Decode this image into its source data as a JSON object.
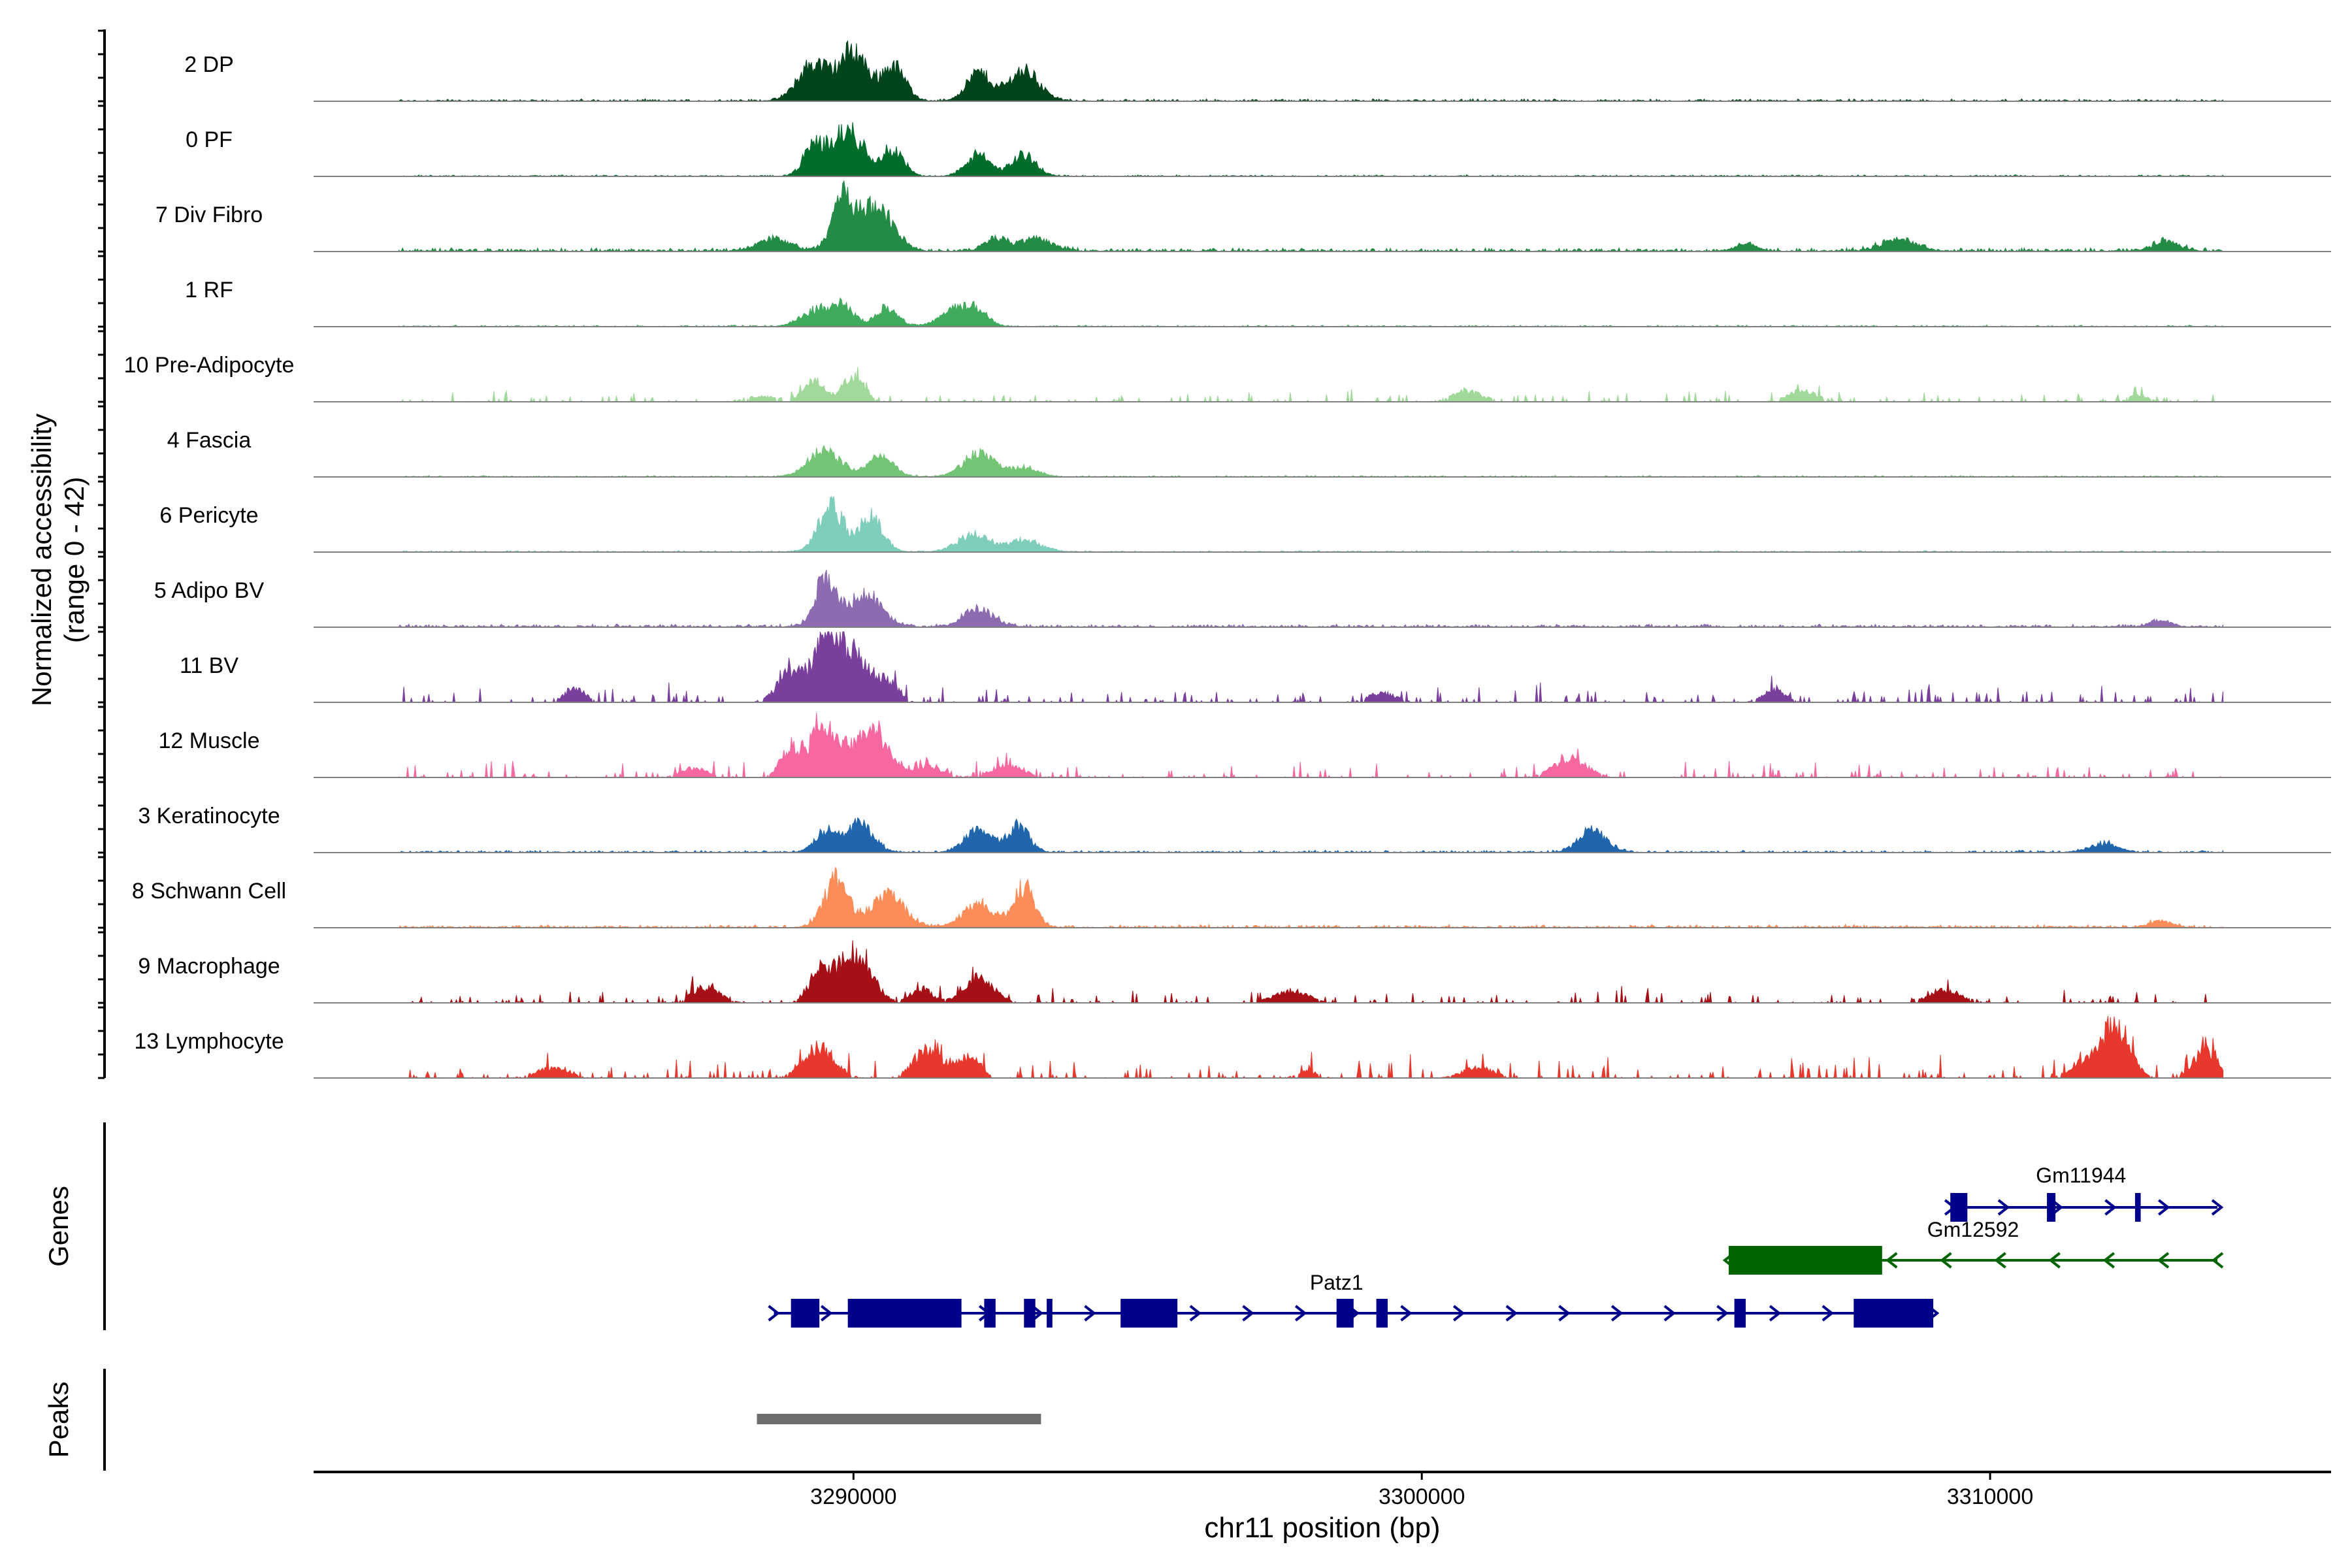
{
  "chart_data": {
    "type": "area",
    "title": "",
    "xlabel": "chr11 position (bp)",
    "ylabel_line1": "Normalized accessibility",
    "ylabel_line2": "(range 0 - 42)",
    "y_range": [
      0,
      42
    ],
    "x_range": [
      3280500,
      3316000
    ],
    "x_ticks": [
      3290000,
      3300000,
      3310000
    ],
    "x_tick_labels": [
      "3290000",
      "3300000",
      "3310000"
    ],
    "track_labels": {
      "genes": "Genes",
      "peaks": "Peaks"
    },
    "tracks": [
      {
        "name": "2 DP",
        "color": "#00441b",
        "peaks": [
          [
            3290000,
            37
          ],
          [
            3289300,
            28
          ],
          [
            3290700,
            26
          ],
          [
            3292200,
            21
          ],
          [
            3293000,
            23
          ]
        ],
        "noise": 1.5,
        "sparse": false,
        "extra": []
      },
      {
        "name": "0 PF",
        "color": "#006d2c",
        "peaks": [
          [
            3289900,
            34
          ],
          [
            3289300,
            20
          ],
          [
            3290700,
            20
          ],
          [
            3292200,
            16
          ],
          [
            3293000,
            16
          ]
        ],
        "noise": 1.0,
        "sparse": false,
        "extra": []
      },
      {
        "name": "7 Div Fibro",
        "color": "#238b45",
        "peaks": [
          [
            3289800,
            40
          ],
          [
            3290400,
            34
          ],
          [
            3288600,
            9
          ],
          [
            3292500,
            10
          ],
          [
            3293200,
            9
          ]
        ],
        "noise": 2.5,
        "sparse": false,
        "extra": [
          [
            3305700,
            5
          ],
          [
            3308400,
            9
          ],
          [
            3313100,
            7
          ]
        ]
      },
      {
        "name": "1 RF",
        "color": "#41ab5d",
        "peaks": [
          [
            3289800,
            16
          ],
          [
            3289300,
            12
          ],
          [
            3290600,
            15
          ],
          [
            3291800,
            13
          ],
          [
            3292200,
            10
          ]
        ],
        "noise": 1.0,
        "sparse": false,
        "extra": []
      },
      {
        "name": "10 Pre-Adipocyte",
        "color": "#a1d99b",
        "peaks": [
          [
            3290000,
            20
          ],
          [
            3289300,
            15
          ],
          [
            3288400,
            4
          ]
        ],
        "noise": 2.5,
        "sparse": true,
        "extra": [
          [
            3300800,
            8
          ],
          [
            3306700,
            8
          ],
          [
            3312600,
            5
          ]
        ]
      },
      {
        "name": "4 Fascia",
        "color": "#74c476",
        "peaks": [
          [
            3289500,
            19
          ],
          [
            3290500,
            16
          ],
          [
            3292200,
            18
          ],
          [
            3293000,
            7
          ]
        ],
        "noise": 1.0,
        "sparse": false,
        "extra": []
      },
      {
        "name": "6 Pericyte",
        "color": "#7fcdbb",
        "peaks": [
          [
            3289600,
            36
          ],
          [
            3290300,
            26
          ],
          [
            3292100,
            13
          ],
          [
            3293000,
            9
          ]
        ],
        "noise": 1.0,
        "sparse": false,
        "extra": []
      },
      {
        "name": "5 Adipo BV",
        "color": "#8c6bb1",
        "peaks": [
          [
            3289500,
            35
          ],
          [
            3290200,
            24
          ],
          [
            3292200,
            13
          ]
        ],
        "noise": 2.0,
        "sparse": false,
        "extra": [
          [
            3313000,
            5
          ]
        ]
      },
      {
        "name": "11 BV",
        "color": "#7a3e9d",
        "peaks": [
          [
            3289500,
            41
          ],
          [
            3290000,
            38
          ],
          [
            3288900,
            22
          ],
          [
            3290600,
            15
          ]
        ],
        "noise": 4.0,
        "sparse": true,
        "extra": [
          [
            3285100,
            10
          ],
          [
            3299300,
            7
          ],
          [
            3306200,
            10
          ]
        ]
      },
      {
        "name": "12 Muscle",
        "color": "#f768a1",
        "peaks": [
          [
            3289500,
            42
          ],
          [
            3290300,
            34
          ],
          [
            3288900,
            20
          ],
          [
            3291300,
            8
          ]
        ],
        "noise": 4.0,
        "sparse": true,
        "extra": [
          [
            3302600,
            14
          ],
          [
            3292700,
            9
          ],
          [
            3287200,
            7
          ]
        ]
      },
      {
        "name": "3 Keratinocyte",
        "color": "#2166ac",
        "peaks": [
          [
            3290100,
            22
          ],
          [
            3289500,
            15
          ],
          [
            3292200,
            17
          ],
          [
            3292900,
            20
          ],
          [
            3303000,
            17
          ],
          [
            3312000,
            7
          ]
        ],
        "noise": 1.5,
        "sparse": false,
        "extra": []
      },
      {
        "name": "8 Schwann Cell",
        "color": "#fc8d59",
        "peaks": [
          [
            3289700,
            36
          ],
          [
            3290600,
            24
          ],
          [
            3293000,
            30
          ],
          [
            3292200,
            18
          ]
        ],
        "noise": 2.0,
        "sparse": false,
        "extra": [
          [
            3313000,
            5
          ]
        ]
      },
      {
        "name": "9 Macrophage",
        "color": "#a50f15",
        "peaks": [
          [
            3290000,
            39
          ],
          [
            3289400,
            20
          ],
          [
            3292200,
            18
          ],
          [
            3291200,
            10
          ]
        ],
        "noise": 3.5,
        "sparse": true,
        "extra": [
          [
            3287400,
            12
          ],
          [
            3297700,
            9
          ],
          [
            3309200,
            9
          ]
        ]
      },
      {
        "name": "13 Lymphocyte",
        "color": "#e8382d",
        "peaks": [
          [
            3312200,
            42
          ],
          [
            3289400,
            23
          ],
          [
            3311600,
            11
          ],
          [
            3313800,
            21
          ],
          [
            3291300,
            22
          ],
          [
            3292000,
            16
          ]
        ],
        "noise": 5.0,
        "sparse": true,
        "extra": [
          [
            3284700,
            8
          ],
          [
            3301000,
            8
          ],
          [
            3298000,
            5
          ]
        ]
      }
    ],
    "genes": [
      {
        "name": "Gm11944",
        "strand": "+",
        "color": "#00008b",
        "row": 0,
        "start": 3309300,
        "end": 3314000,
        "exons": [
          [
            3309300,
            3309600
          ],
          [
            3311000,
            3311150
          ],
          [
            3312550,
            3312650
          ]
        ]
      },
      {
        "name": "Gm12592",
        "strand": "-",
        "color": "#006400",
        "row": 1,
        "start": 3305400,
        "end": 3314000,
        "exons": [
          [
            3305400,
            3308100
          ]
        ]
      },
      {
        "name": "Patz1",
        "strand": "+",
        "color": "#00008b",
        "row": 2,
        "start": 3288600,
        "end": 3309000,
        "exons": [
          [
            3288900,
            3289400
          ],
          [
            3289900,
            3291900
          ],
          [
            3292300,
            3292500
          ],
          [
            3293000,
            3293200
          ],
          [
            3293400,
            3293500
          ],
          [
            3294700,
            3295700
          ],
          [
            3298500,
            3298800
          ],
          [
            3299200,
            3299400
          ],
          [
            3305500,
            3305700
          ],
          [
            3307600,
            3309000
          ]
        ]
      }
    ],
    "peaks_track": [
      {
        "start": 3288300,
        "end": 3293300,
        "color": "#6e6e6e"
      }
    ]
  }
}
